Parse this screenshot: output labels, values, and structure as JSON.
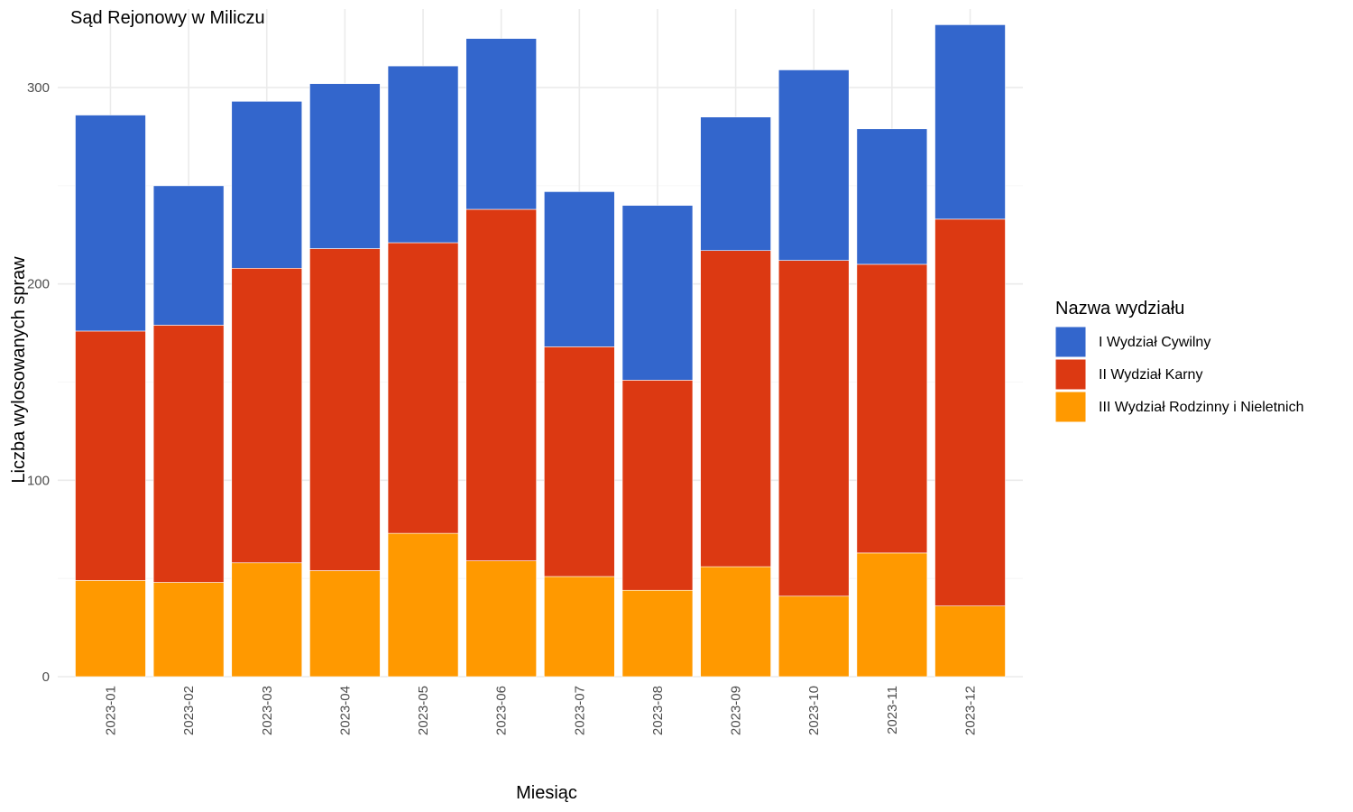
{
  "chart_data": {
    "type": "bar",
    "stacked": true,
    "title": "Sąd Rejonowy w Miliczu",
    "xlabel": "Miesiąc",
    "ylabel": "Liczba wylosowanych spraw",
    "ylim": [
      0,
      340
    ],
    "yticks": [
      0,
      100,
      200,
      300
    ],
    "grid": true,
    "legend": {
      "title": "Nazwa wydziału",
      "position": "right"
    },
    "categories": [
      "2023-01",
      "2023-02",
      "2023-03",
      "2023-04",
      "2023-05",
      "2023-06",
      "2023-07",
      "2023-08",
      "2023-09",
      "2023-10",
      "2023-11",
      "2023-12"
    ],
    "series": [
      {
        "name": "III Wydział Rodzinny i Nieletnich",
        "color": "#FF9900",
        "values": [
          49,
          48,
          58,
          54,
          73,
          59,
          51,
          44,
          56,
          41,
          63,
          36
        ]
      },
      {
        "name": "II Wydział Karny",
        "color": "#DC3912",
        "values": [
          127,
          131,
          150,
          164,
          148,
          179,
          117,
          107,
          161,
          171,
          147,
          197
        ]
      },
      {
        "name": "I Wydział Cywilny",
        "color": "#3366CC",
        "values": [
          110,
          71,
          85,
          84,
          90,
          87,
          79,
          89,
          68,
          97,
          69,
          99
        ]
      }
    ],
    "legend_order": [
      "I Wydział Cywilny",
      "II Wydział Karny",
      "III Wydział Rodzinny i Nieletnich"
    ]
  }
}
